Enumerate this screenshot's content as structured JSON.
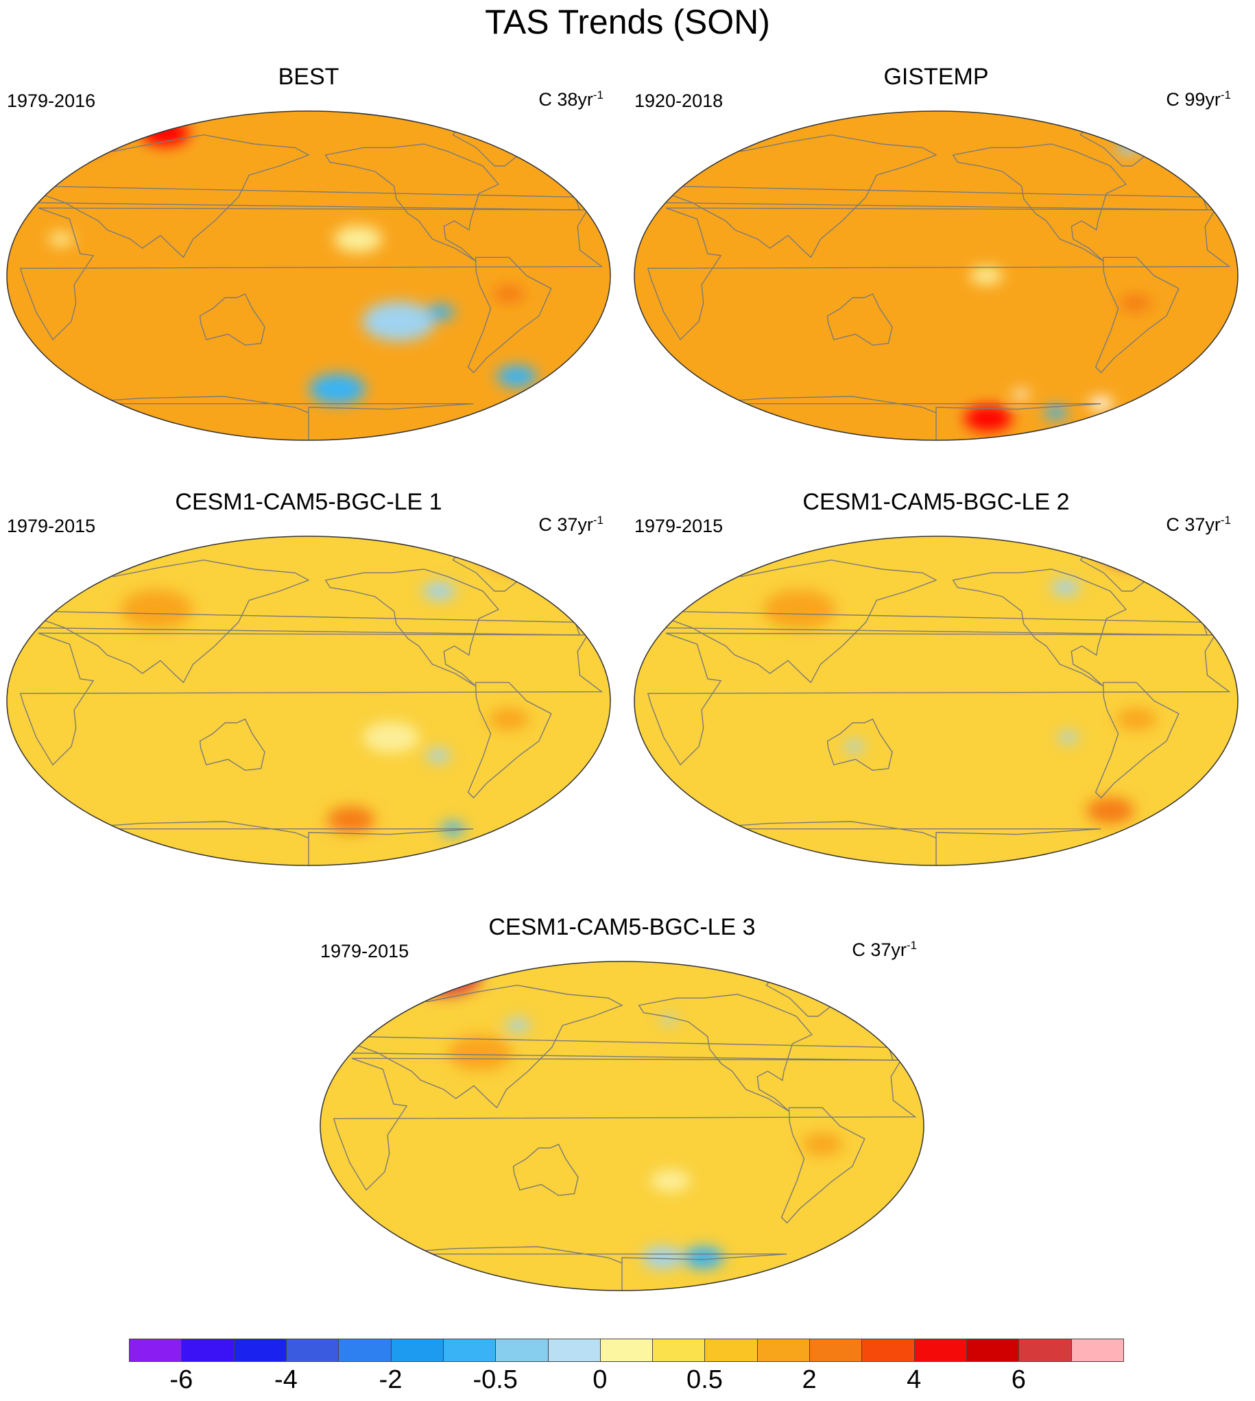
{
  "title": "TAS Trends (SON)",
  "panels": [
    {
      "title": "BEST",
      "period": "1979-2016",
      "units": "C 38yr",
      "units_exp": "-1",
      "background": "#f9a51c",
      "patches": [
        {
          "color": "#d63a3a",
          "lon": 0,
          "lat": 82,
          "r": 22
        },
        {
          "color": "#ff0000",
          "lon": 70,
          "lat": 78,
          "r": 12
        },
        {
          "color": "#fcef9a",
          "lon": -150,
          "lat": 20,
          "r": 12
        },
        {
          "color": "#9fd3f0",
          "lon": -125,
          "lat": -25,
          "r": 18
        },
        {
          "color": "#39b3f5",
          "lon": -100,
          "lat": -20,
          "r": 7
        },
        {
          "color": "#39b3f5",
          "lon": -160,
          "lat": -62,
          "r": 14
        },
        {
          "color": "#39b3f5",
          "lon": -40,
          "lat": -55,
          "r": 10
        },
        {
          "color": "#fcef9a",
          "lon": 30,
          "lat": 20,
          "r": 6
        },
        {
          "color": "#f57c14",
          "lon": -60,
          "lat": -10,
          "r": 8
        },
        {
          "color": "#f57c14",
          "lon": 20,
          "lat": -80,
          "r": 12
        }
      ]
    },
    {
      "title": "GISTEMP",
      "period": "1920-2018",
      "units": "C 99yr",
      "units_exp": "-1",
      "background": "#f9a51c",
      "patches": [
        {
          "color": "#9fd3f0",
          "lon": -40,
          "lat": 70,
          "r": 6
        },
        {
          "color": "#39b3f5",
          "lon": -42,
          "lat": 72,
          "r": 3
        },
        {
          "color": "#fcef9a",
          "lon": -150,
          "lat": 0,
          "r": 8
        },
        {
          "color": "#ff0000",
          "lon": -140,
          "lat": -78,
          "r": 12
        },
        {
          "color": "#39b3f5",
          "lon": -90,
          "lat": -75,
          "r": 6
        },
        {
          "color": "#ffffff",
          "lon": -60,
          "lat": -70,
          "r": 6
        },
        {
          "color": "#ffffff",
          "lon": -120,
          "lat": -65,
          "r": 4
        },
        {
          "color": "#f57c14",
          "lon": -60,
          "lat": -15,
          "r": 8
        }
      ]
    },
    {
      "title": "CESM1-CAM5-BGC-LE 1",
      "period": "1979-2015",
      "units": "C 37yr",
      "units_exp": "-1",
      "background": "#fbd13c",
      "patches": [
        {
          "color": "#d63a3a",
          "lon": -10,
          "lat": 84,
          "r": 20
        },
        {
          "color": "#ffb3b8",
          "lon": -20,
          "lat": 84,
          "r": 8
        },
        {
          "color": "#9fd3f0",
          "lon": -90,
          "lat": 60,
          "r": 8
        },
        {
          "color": "#fcef9a",
          "lon": -130,
          "lat": -20,
          "r": 14
        },
        {
          "color": "#9fd3f0",
          "lon": -100,
          "lat": -30,
          "r": 6
        },
        {
          "color": "#f57c14",
          "lon": -150,
          "lat": -65,
          "r": 12
        },
        {
          "color": "#39b3f5",
          "lon": -75,
          "lat": -70,
          "r": 6
        },
        {
          "color": "#f9a51c",
          "lon": 80,
          "lat": 50,
          "r": 18
        },
        {
          "color": "#f9a51c",
          "lon": -60,
          "lat": -10,
          "r": 10
        }
      ]
    },
    {
      "title": "CESM1-CAM5-BGC-LE 2",
      "period": "1979-2015",
      "units": "C 37yr",
      "units_exp": "-1",
      "background": "#fbd13c",
      "patches": [
        {
          "color": "#d63a3a",
          "lon": -20,
          "lat": 84,
          "r": 18
        },
        {
          "color": "#ffb3b8",
          "lon": -10,
          "lat": 84,
          "r": 8
        },
        {
          "color": "#9fd3f0",
          "lon": -90,
          "lat": 62,
          "r": 7
        },
        {
          "color": "#9fd3f0",
          "lon": -100,
          "lat": -20,
          "r": 5
        },
        {
          "color": "#9fd3f0",
          "lon": 130,
          "lat": -25,
          "r": 5
        },
        {
          "color": "#f9a51c",
          "lon": 90,
          "lat": 50,
          "r": 18
        },
        {
          "color": "#f9a51c",
          "lon": -60,
          "lat": -10,
          "r": 10
        },
        {
          "color": "#f57c14",
          "lon": -60,
          "lat": -60,
          "r": 12
        }
      ]
    },
    {
      "title": "CESM1-CAM5-BGC-LE 3",
      "period": "1979-2015",
      "units": "C 37yr",
      "units_exp": "-1",
      "background": "#fbd13c",
      "patches": [
        {
          "color": "#d63a3a",
          "lon": 40,
          "lat": 82,
          "r": 18
        },
        {
          "color": "#ffb3b8",
          "lon": 40,
          "lat": 84,
          "r": 6
        },
        {
          "color": "#ff0000",
          "lon": 20,
          "lat": 80,
          "r": 10
        },
        {
          "color": "#9fd3f0",
          "lon": -148,
          "lat": 58,
          "r": 4
        },
        {
          "color": "#9fd3f0",
          "lon": 110,
          "lat": 55,
          "r": 6
        },
        {
          "color": "#fcef9a",
          "lon": -150,
          "lat": -30,
          "r": 10
        },
        {
          "color": "#39b3f5",
          "lon": -120,
          "lat": -72,
          "r": 10
        },
        {
          "color": "#9fd3f0",
          "lon": -150,
          "lat": -72,
          "r": 10
        },
        {
          "color": "#f9a51c",
          "lon": -60,
          "lat": -10,
          "r": 10
        },
        {
          "color": "#f9a51c",
          "lon": 90,
          "lat": 40,
          "r": 16
        }
      ]
    }
  ],
  "colorbar": {
    "colors": [
      "#8a1ef2",
      "#3a12f5",
      "#1a22f0",
      "#3a5ae0",
      "#2e7ff0",
      "#1d9bf0",
      "#39b3f5",
      "#87cdee",
      "#b9dff5",
      "#fcf6a0",
      "#fbe24c",
      "#f9c424",
      "#f9a51c",
      "#f57c14",
      "#f54a0a",
      "#f50a0a",
      "#d10000",
      "#d63a3a",
      "#ffb3b8"
    ],
    "labels": [
      "-6",
      "-4",
      "-2",
      "-0.5",
      "0",
      "0.5",
      "2",
      "4",
      "6"
    ],
    "label_positions": [
      1,
      3,
      5,
      7,
      9,
      11,
      13,
      15,
      17
    ]
  }
}
